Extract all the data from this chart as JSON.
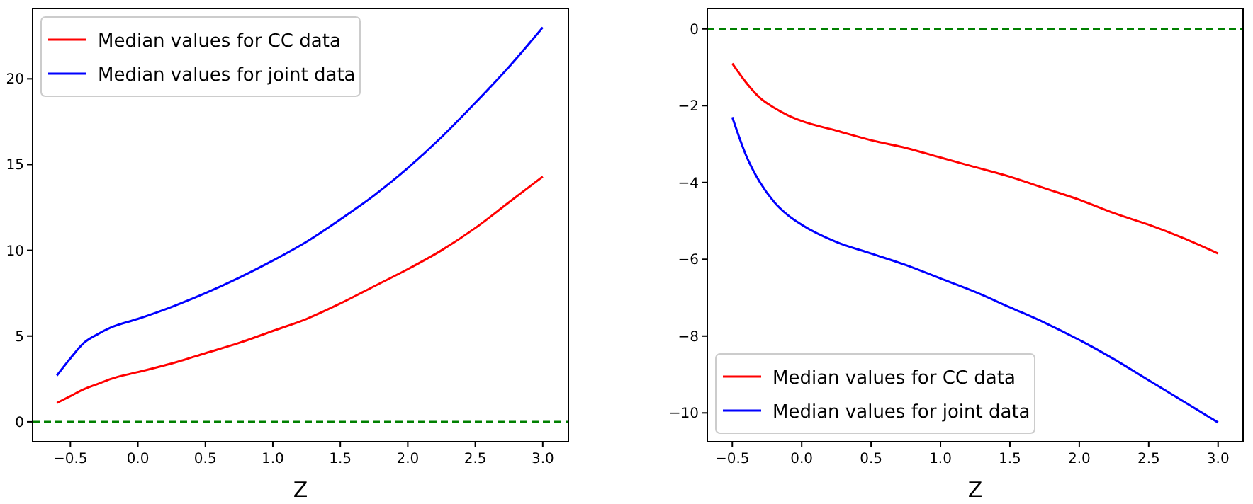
{
  "chart_data": [
    {
      "type": "line",
      "xlabel": "Z",
      "x": [
        -0.6,
        -0.5,
        -0.4,
        -0.3,
        -0.2,
        0,
        0.25,
        0.5,
        0.75,
        1,
        1.25,
        1.5,
        1.75,
        2,
        2.25,
        2.5,
        2.75,
        3
      ],
      "xlim": [
        -0.78,
        3.19
      ],
      "xticks": [
        {
          "value": -0.5,
          "label": "−0.5"
        },
        {
          "value": 0,
          "label": "0.0"
        },
        {
          "value": 0.5,
          "label": "0.5"
        },
        {
          "value": 1,
          "label": "1.0"
        },
        {
          "value": 1.5,
          "label": "1.5"
        },
        {
          "value": 2,
          "label": "2.0"
        },
        {
          "value": 2.5,
          "label": "2.5"
        },
        {
          "value": 3,
          "label": "3.0"
        }
      ],
      "ylim": [
        -1.16,
        24.1
      ],
      "yticks": [
        0,
        5,
        10,
        15,
        20
      ],
      "legend": "top left",
      "grid": false,
      "series": [
        {
          "name": "Median values for CC data",
          "color": "#ff0000",
          "values": [
            1.1,
            1.5,
            1.9,
            2.2,
            2.5,
            2.9,
            3.4,
            4.0,
            4.6,
            5.3,
            6.0,
            6.9,
            7.9,
            8.9,
            10.0,
            11.3,
            12.8,
            14.3
          ]
        },
        {
          "name": "Median values for joint data",
          "color": "#0000ff",
          "values": [
            2.7,
            3.7,
            4.6,
            5.1,
            5.5,
            6.0,
            6.7,
            7.5,
            8.4,
            9.4,
            10.5,
            11.8,
            13.2,
            14.8,
            16.6,
            18.6,
            20.7,
            23.0
          ]
        }
      ],
      "ref_lines": [
        {
          "axis": "y",
          "value": 0,
          "color": "#008000",
          "line_style": "dashed"
        }
      ]
    },
    {
      "type": "line",
      "xlabel": "Z",
      "x": [
        -0.5,
        -0.4,
        -0.3,
        -0.2,
        -0.1,
        0,
        0.25,
        0.5,
        0.75,
        1,
        1.25,
        1.5,
        1.75,
        2,
        2.25,
        2.5,
        2.75,
        3
      ],
      "xlim": [
        -0.68,
        3.18
      ],
      "xticks": [
        {
          "value": -0.5,
          "label": "−0.5"
        },
        {
          "value": 0,
          "label": "0.0"
        },
        {
          "value": 0.5,
          "label": "0.5"
        },
        {
          "value": 1,
          "label": "1.0"
        },
        {
          "value": 1.5,
          "label": "1.5"
        },
        {
          "value": 2,
          "label": "2.0"
        },
        {
          "value": 2.5,
          "label": "2.5"
        },
        {
          "value": 3,
          "label": "3.0"
        }
      ],
      "ylim": [
        -10.75,
        0.53
      ],
      "yticks": [
        0,
        {
          "value": -2,
          "label": "−2"
        },
        {
          "value": -4,
          "label": "−4"
        },
        {
          "value": -6,
          "label": "−6"
        },
        {
          "value": -8,
          "label": "−8"
        },
        {
          "value": -10,
          "label": "−10"
        }
      ],
      "legend": "bottom left",
      "grid": false,
      "series": [
        {
          "name": "Median values for CC data",
          "color": "#ff0000",
          "values": [
            -0.9,
            -1.4,
            -1.8,
            -2.05,
            -2.25,
            -2.4,
            -2.65,
            -2.9,
            -3.1,
            -3.35,
            -3.6,
            -3.85,
            -4.15,
            -4.45,
            -4.8,
            -5.1,
            -5.45,
            -5.85
          ]
        },
        {
          "name": "Median values for joint data",
          "color": "#0000ff",
          "values": [
            -2.3,
            -3.3,
            -4.0,
            -4.5,
            -4.85,
            -5.1,
            -5.55,
            -5.85,
            -6.15,
            -6.5,
            -6.85,
            -7.25,
            -7.65,
            -8.1,
            -8.6,
            -9.15,
            -9.7,
            -10.25
          ]
        }
      ],
      "ref_lines": [
        {
          "axis": "y",
          "value": 0,
          "color": "#008000",
          "line_style": "dashed"
        }
      ]
    }
  ]
}
